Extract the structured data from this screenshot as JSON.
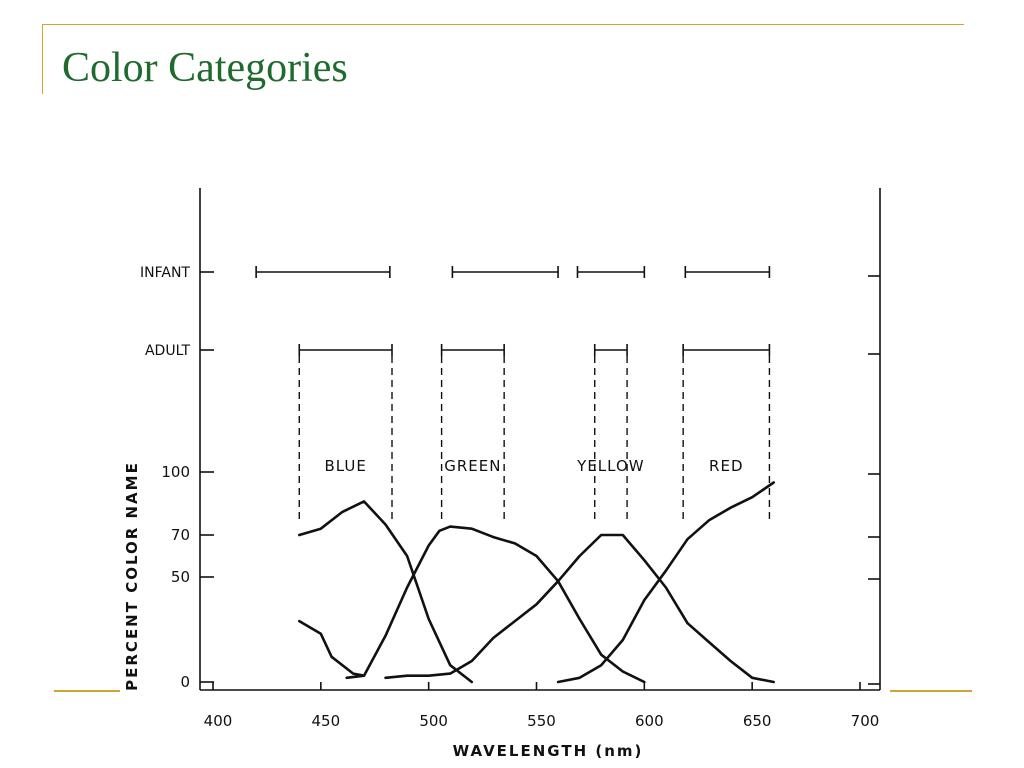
{
  "slide": {
    "title": "Color Categories"
  },
  "chart_data": {
    "type": "line",
    "xlabel": "WAVELENGTH  (nm)",
    "ylabel": "PERCENT COLOR NAME",
    "xlim": [
      400,
      700
    ],
    "ylim": [
      0,
      100
    ],
    "x_ticks": [
      400,
      450,
      500,
      550,
      600,
      650,
      700
    ],
    "y_ticks": [
      0,
      50,
      70,
      100
    ],
    "grid": false,
    "range_rows": [
      {
        "label": "INFANT",
        "ranges": [
          [
            420,
            482
          ],
          [
            511,
            560
          ],
          [
            569,
            600
          ],
          [
            619,
            658
          ]
        ]
      },
      {
        "label": "ADULT",
        "ranges": [
          [
            440,
            483
          ],
          [
            506,
            535
          ],
          [
            577,
            592
          ],
          [
            618,
            658
          ]
        ]
      }
    ],
    "categories": [
      {
        "label": "BLUE",
        "range": [
          440,
          483
        ]
      },
      {
        "label": "GREEN",
        "range": [
          506,
          535
        ]
      },
      {
        "label": "YELLOW",
        "range": [
          577,
          592
        ]
      },
      {
        "label": "RED",
        "range": [
          618,
          658
        ]
      }
    ],
    "series": [
      {
        "x": [
          440,
          450,
          460,
          470,
          480,
          490,
          500,
          510,
          520
        ],
        "y": [
          70,
          73,
          81,
          86,
          75,
          60,
          30,
          8,
          0
        ]
      },
      {
        "x": [
          440,
          450,
          455,
          465,
          470
        ],
        "y": [
          29,
          23,
          12,
          4,
          3
        ]
      },
      {
        "x": [
          462,
          470,
          480,
          490,
          500,
          505,
          510,
          520,
          530,
          540,
          550,
          560,
          570,
          580,
          590,
          600
        ],
        "y": [
          2,
          3,
          22,
          45,
          65,
          72,
          74,
          73,
          69,
          66,
          60,
          48,
          30,
          13,
          5,
          0
        ]
      },
      {
        "x": [
          480,
          490,
          500,
          510,
          520,
          530,
          540,
          550,
          560,
          570,
          580,
          590,
          600,
          610,
          620,
          630,
          640,
          650,
          660
        ],
        "y": [
          2,
          3,
          3,
          4,
          10,
          21,
          29,
          37,
          48,
          60,
          70,
          70,
          58,
          45,
          28,
          19,
          10,
          2,
          0
        ]
      },
      {
        "x": [
          560,
          570,
          580,
          590,
          600,
          610,
          620,
          630,
          640,
          650,
          660
        ],
        "y": [
          0,
          2,
          8,
          20,
          39,
          53,
          68,
          77,
          83,
          88,
          95
        ]
      }
    ]
  }
}
